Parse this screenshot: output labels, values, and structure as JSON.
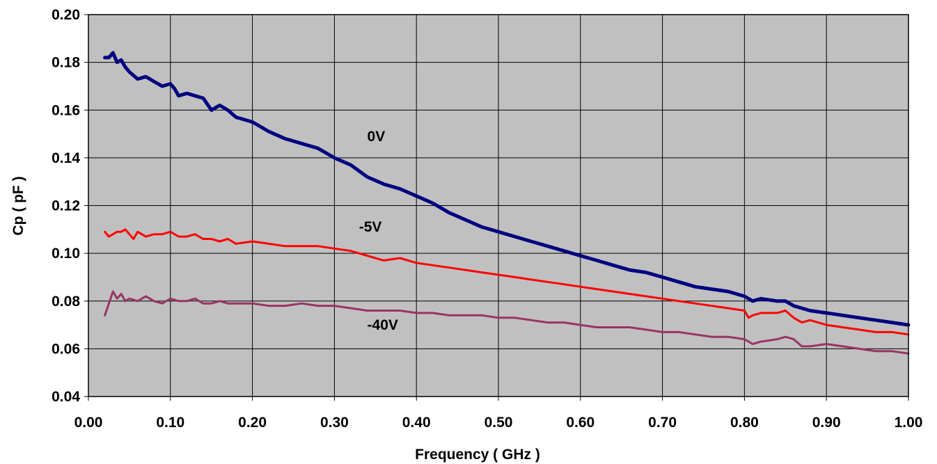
{
  "chart_data": {
    "type": "line",
    "xlabel": "Frequency ( GHz )",
    "ylabel": "Cp ( pF )",
    "xlim": [
      0,
      1.0
    ],
    "ylim": [
      0.04,
      0.2
    ],
    "xticks": [
      "0.00",
      "0.10",
      "0.20",
      "0.30",
      "0.40",
      "0.50",
      "0.60",
      "0.70",
      "0.80",
      "0.90",
      "1.00"
    ],
    "yticks": [
      "0.04",
      "0.06",
      "0.08",
      "0.10",
      "0.12",
      "0.14",
      "0.16",
      "0.18",
      "0.20"
    ],
    "grid": true,
    "plot_background": "#C0C0C0",
    "series": [
      {
        "name": "0V",
        "color": "#000080",
        "x": [
          0.02,
          0.025,
          0.03,
          0.035,
          0.04,
          0.045,
          0.05,
          0.06,
          0.07,
          0.08,
          0.09,
          0.1,
          0.105,
          0.11,
          0.12,
          0.13,
          0.14,
          0.15,
          0.16,
          0.17,
          0.18,
          0.2,
          0.22,
          0.24,
          0.26,
          0.28,
          0.3,
          0.32,
          0.34,
          0.36,
          0.38,
          0.4,
          0.42,
          0.44,
          0.46,
          0.48,
          0.5,
          0.52,
          0.54,
          0.56,
          0.58,
          0.6,
          0.62,
          0.64,
          0.66,
          0.68,
          0.7,
          0.72,
          0.74,
          0.76,
          0.78,
          0.8,
          0.81,
          0.82,
          0.84,
          0.85,
          0.86,
          0.88,
          0.9,
          0.92,
          0.94,
          0.96,
          0.98,
          1.0
        ],
        "values": [
          0.182,
          0.182,
          0.184,
          0.18,
          0.181,
          0.178,
          0.176,
          0.173,
          0.174,
          0.172,
          0.17,
          0.171,
          0.169,
          0.166,
          0.167,
          0.166,
          0.165,
          0.16,
          0.162,
          0.16,
          0.157,
          0.155,
          0.151,
          0.148,
          0.146,
          0.144,
          0.14,
          0.137,
          0.132,
          0.129,
          0.127,
          0.124,
          0.121,
          0.117,
          0.114,
          0.111,
          0.109,
          0.107,
          0.105,
          0.103,
          0.101,
          0.099,
          0.097,
          0.095,
          0.093,
          0.092,
          0.09,
          0.088,
          0.086,
          0.085,
          0.084,
          0.082,
          0.08,
          0.081,
          0.08,
          0.08,
          0.078,
          0.076,
          0.075,
          0.074,
          0.073,
          0.072,
          0.071,
          0.07
        ]
      },
      {
        "name": "-5V",
        "color": "#FF0000",
        "x": [
          0.02,
          0.025,
          0.03,
          0.035,
          0.04,
          0.045,
          0.05,
          0.055,
          0.06,
          0.07,
          0.08,
          0.09,
          0.1,
          0.11,
          0.12,
          0.13,
          0.14,
          0.15,
          0.16,
          0.17,
          0.18,
          0.2,
          0.22,
          0.24,
          0.26,
          0.28,
          0.3,
          0.32,
          0.34,
          0.36,
          0.38,
          0.4,
          0.42,
          0.44,
          0.46,
          0.48,
          0.5,
          0.52,
          0.54,
          0.56,
          0.58,
          0.6,
          0.62,
          0.64,
          0.66,
          0.68,
          0.7,
          0.72,
          0.74,
          0.76,
          0.78,
          0.8,
          0.805,
          0.81,
          0.82,
          0.84,
          0.85,
          0.86,
          0.87,
          0.88,
          0.9,
          0.92,
          0.94,
          0.96,
          0.98,
          1.0
        ],
        "values": [
          0.109,
          0.107,
          0.108,
          0.109,
          0.109,
          0.11,
          0.108,
          0.106,
          0.109,
          0.107,
          0.108,
          0.108,
          0.109,
          0.107,
          0.107,
          0.108,
          0.106,
          0.106,
          0.105,
          0.106,
          0.104,
          0.105,
          0.104,
          0.103,
          0.103,
          0.103,
          0.102,
          0.101,
          0.099,
          0.097,
          0.098,
          0.096,
          0.095,
          0.094,
          0.093,
          0.092,
          0.091,
          0.09,
          0.089,
          0.088,
          0.087,
          0.086,
          0.085,
          0.084,
          0.083,
          0.082,
          0.081,
          0.08,
          0.079,
          0.078,
          0.077,
          0.076,
          0.073,
          0.074,
          0.075,
          0.075,
          0.076,
          0.073,
          0.071,
          0.072,
          0.07,
          0.069,
          0.068,
          0.067,
          0.067,
          0.066
        ]
      },
      {
        "name": "-40V",
        "color": "#993366",
        "x": [
          0.02,
          0.025,
          0.03,
          0.035,
          0.04,
          0.045,
          0.05,
          0.06,
          0.07,
          0.08,
          0.09,
          0.1,
          0.11,
          0.12,
          0.13,
          0.14,
          0.15,
          0.16,
          0.17,
          0.18,
          0.2,
          0.22,
          0.24,
          0.26,
          0.28,
          0.3,
          0.32,
          0.34,
          0.36,
          0.38,
          0.4,
          0.42,
          0.44,
          0.46,
          0.48,
          0.5,
          0.52,
          0.54,
          0.56,
          0.58,
          0.6,
          0.62,
          0.64,
          0.66,
          0.68,
          0.7,
          0.72,
          0.74,
          0.76,
          0.78,
          0.8,
          0.81,
          0.82,
          0.84,
          0.85,
          0.86,
          0.87,
          0.88,
          0.9,
          0.92,
          0.94,
          0.96,
          0.98,
          1.0
        ],
        "values": [
          0.074,
          0.079,
          0.084,
          0.081,
          0.083,
          0.08,
          0.081,
          0.08,
          0.082,
          0.08,
          0.079,
          0.081,
          0.08,
          0.08,
          0.081,
          0.079,
          0.079,
          0.08,
          0.079,
          0.079,
          0.079,
          0.078,
          0.078,
          0.079,
          0.078,
          0.078,
          0.077,
          0.076,
          0.076,
          0.076,
          0.075,
          0.075,
          0.074,
          0.074,
          0.074,
          0.073,
          0.073,
          0.072,
          0.071,
          0.071,
          0.07,
          0.069,
          0.069,
          0.069,
          0.068,
          0.067,
          0.067,
          0.066,
          0.065,
          0.065,
          0.064,
          0.062,
          0.063,
          0.064,
          0.065,
          0.064,
          0.061,
          0.061,
          0.062,
          0.061,
          0.06,
          0.059,
          0.059,
          0.058
        ]
      }
    ]
  }
}
